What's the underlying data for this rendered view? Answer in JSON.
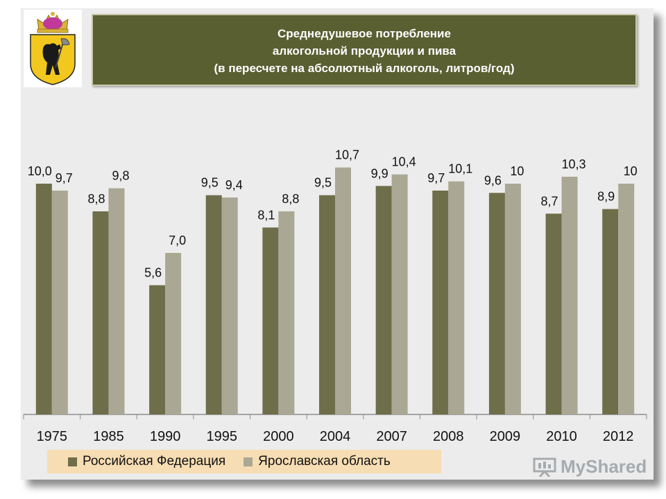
{
  "title": {
    "line1": "Среднедушевое потребление",
    "line2": "алкогольной продукции и пива",
    "line3": "(в пересчете на абсолютный алкоголь, литров/год)"
  },
  "colors": {
    "series1": "#6e6e4a",
    "series2": "#aaa894",
    "title_bg": "#5a5f32",
    "legend_bg": "#f7ddb3"
  },
  "watermark": {
    "text": "MyShared",
    "icon": "presentation-board-icon"
  },
  "emblem": {
    "icon": "yaroslavl-coat-of-arms-icon"
  },
  "chart_data": {
    "type": "bar",
    "title": "Среднедушевое потребление алкогольной продукции и пива (в пересчете на абсолютный алкоголь, литров/год)",
    "categories": [
      "1975",
      "1985",
      "1990",
      "1995",
      "2000",
      "2004",
      "2007",
      "2008",
      "2009",
      "2010",
      "2012"
    ],
    "series": [
      {
        "name": "Российская Федерация",
        "values": [
          10.0,
          8.8,
          5.6,
          9.5,
          8.1,
          9.5,
          9.9,
          9.7,
          9.6,
          8.7,
          8.9
        ],
        "labels": [
          "10,0",
          "8,8",
          "5,6",
          "9,5",
          "8,1",
          "9,5",
          "9,9",
          "9,7",
          "9,6",
          "8,7",
          "8,9"
        ]
      },
      {
        "name": "Ярославская область",
        "values": [
          9.7,
          9.8,
          7.0,
          9.4,
          8.8,
          10.7,
          10.4,
          10.1,
          10.0,
          10.3,
          10.0
        ],
        "labels": [
          "9,7",
          "9,8",
          "7,0",
          "9,4",
          "8,8",
          "10,7",
          "10,4",
          "10,1",
          "10",
          "10,3",
          "10"
        ]
      }
    ],
    "ylim": [
      0,
      12
    ],
    "grid": false,
    "legend_position": "bottom-left"
  }
}
